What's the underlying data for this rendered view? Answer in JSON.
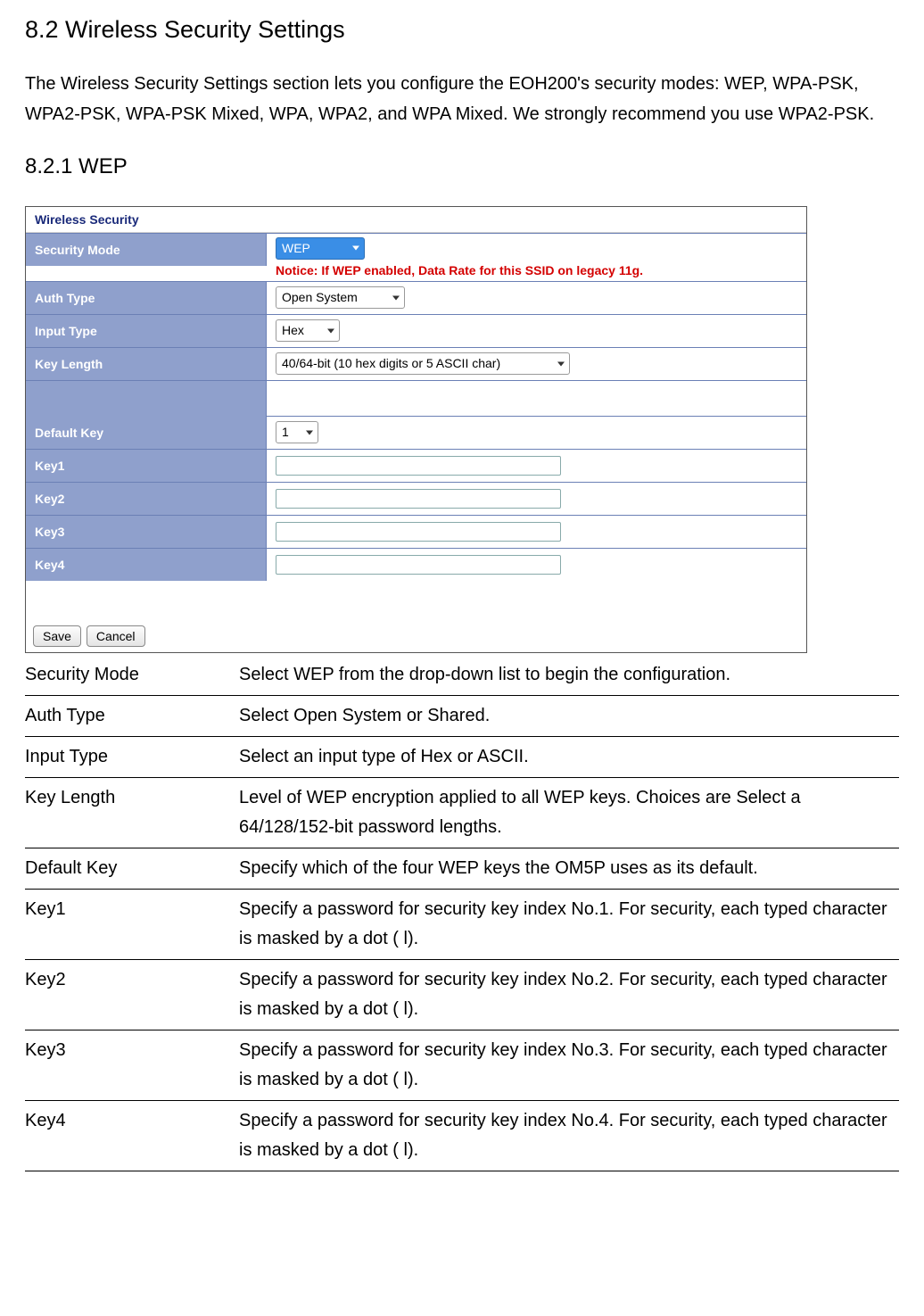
{
  "section": {
    "title": "8.2 Wireless Security Settings",
    "intro": "The Wireless Security Settings section lets you configure the EOH200's security modes: WEP, WPA-PSK, WPA2-PSK, WPA-PSK Mixed, WPA, WPA2, and WPA Mixed. We strongly recommend you use WPA2-PSK.",
    "sub_title": "8.2.1 WEP"
  },
  "panel": {
    "header": "Wireless Security",
    "notice": "Notice: If WEP enabled, Data Rate for this SSID on legacy 11g.",
    "rows": {
      "security_mode": {
        "label": "Security Mode",
        "value": "WEP"
      },
      "auth_type": {
        "label": "Auth Type",
        "value": "Open System"
      },
      "input_type": {
        "label": "Input Type",
        "value": "Hex"
      },
      "key_length": {
        "label": "Key Length",
        "value": "40/64-bit (10 hex digits or 5 ASCII char)"
      },
      "default_key": {
        "label": "Default Key",
        "value": "1"
      },
      "key1": {
        "label": "Key1",
        "value": ""
      },
      "key2": {
        "label": "Key2",
        "value": ""
      },
      "key3": {
        "label": "Key3",
        "value": ""
      },
      "key4": {
        "label": "Key4",
        "value": ""
      }
    },
    "buttons": {
      "save": "Save",
      "cancel": "Cancel"
    },
    "colors": {
      "label_bg": "#8fa0cc",
      "label_border": "#6b80b5",
      "header_text": "#1a2a7a",
      "notice_text": "#d40000",
      "select_highlight_bg": "#3a8ee6"
    }
  },
  "descriptions": [
    {
      "term": "Security Mode",
      "text": "Select WEP from the drop-down  list to begin the configuration."
    },
    {
      "term": "Auth Type",
      "text": "Select Open System or Shared."
    },
    {
      "term": "Input Type",
      "text": "Select an input type of Hex or ASCII."
    },
    {
      "term": "Key Length",
      "text": "Level of WEP encryption applied to all WEP keys. Choices are Select a 64/128/152-bit password lengths."
    },
    {
      "term": "Default Key",
      "text": "Specify which of the four WEP keys the OM5P  uses as its default."
    },
    {
      "term": "Key1",
      "text": "Specify a password for security key index No.1. For security, each typed character is masked by a dot (   l)."
    },
    {
      "term": "Key2",
      "text": "Specify a password for security key index No.2. For security, each typed character is masked by a dot (   l)."
    },
    {
      "term": "Key3",
      "text": "Specify a password for security key index No.3. For security, each typed character is masked by a dot (   l)."
    },
    {
      "term": "Key4",
      "text": "Specify a password for security key index No.4. For security, each typed character is masked by a dot (   l)."
    }
  ]
}
